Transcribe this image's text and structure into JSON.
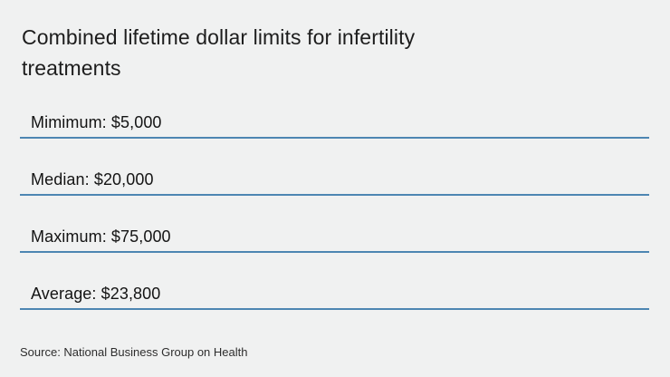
{
  "chart_data": {
    "type": "table",
    "title": "Combined lifetime dollar limits for infertility treatments",
    "categories": [
      "Mimimum",
      "Median",
      "Maximum",
      "Average"
    ],
    "values": [
      5000,
      20000,
      75000,
      23800
    ],
    "value_labels": [
      "$5,000",
      "$20,000",
      "$75,000",
      "$23,800"
    ],
    "source": "Source: National Business Group on Health",
    "legend": "none",
    "grid": "off",
    "accent_color": "#4d86b2"
  },
  "title": {
    "line1": "Combined lifetime dollar limits for infertility",
    "line2": "treatments"
  },
  "rows": [
    {
      "label": "Mimimum: $5,000"
    },
    {
      "label": "Median: $20,000"
    },
    {
      "label": "Maximum: $75,000"
    },
    {
      "label": "Average: $23,800"
    }
  ],
  "source_text": "Source: National Business Group on Health",
  "colors": {
    "background": "#f0f1f1",
    "rule": "#4d86b2",
    "title_text": "#1d1d1d",
    "row_text": "#141414",
    "source_text": "#2e2e2e"
  }
}
